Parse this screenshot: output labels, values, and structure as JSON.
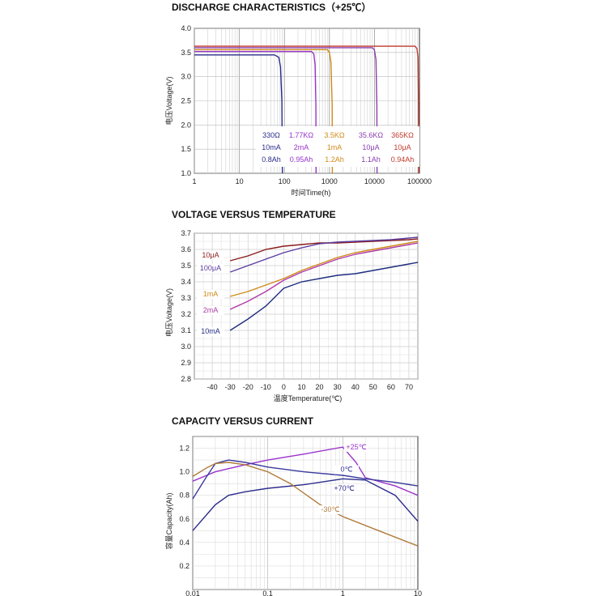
{
  "colors": {
    "red": "#c0392b",
    "maroon": "#8b1a1a",
    "navy": "#2b2b8c",
    "purple": "#8a3fb0",
    "orange": "#d08a17",
    "violet": "#9933cc",
    "brown": "#b07a3a",
    "blue": "#1f2d80"
  },
  "chart_data": [
    {
      "type": "line",
      "title": "DISCHARGE CHARACTERISTICS（+25℃）",
      "xlabel": "时间Time(h)",
      "ylabel": "电压Voltage(V)",
      "xscale": "log",
      "xlim": [
        1,
        100000
      ],
      "ylim": [
        1.0,
        4.0
      ],
      "xticks": [
        "1",
        "10",
        "100",
        "1000",
        "10000",
        "100000"
      ],
      "yticks": [
        "1.0",
        "1.5",
        "2.0",
        "2.5",
        "3.0",
        "3.5",
        "4.0"
      ],
      "series": [
        {
          "name": "330Ω",
          "current": "10mA",
          "capacity": "0.8Ah",
          "color": "#2b2b8c",
          "x": [
            1,
            60,
            75,
            82,
            88,
            90
          ],
          "y": [
            3.45,
            3.45,
            3.4,
            3.2,
            2.5,
            1.0
          ]
        },
        {
          "name": "1.77KΩ",
          "current": "2mA",
          "capacity": "0.95Ah",
          "color": "#9933cc",
          "x": [
            1,
            400,
            450,
            480,
            500,
            505
          ],
          "y": [
            3.52,
            3.52,
            3.47,
            3.25,
            2.4,
            1.0
          ]
        },
        {
          "name": "3.5KΩ",
          "current": "1mA",
          "capacity": "1.2Ah",
          "color": "#d08a17",
          "x": [
            1,
            900,
            1000,
            1080,
            1150,
            1160
          ],
          "y": [
            3.56,
            3.56,
            3.5,
            3.3,
            2.4,
            1.0
          ]
        },
        {
          "name": "35.6KΩ",
          "current": "10μA",
          "capacity": "1.1Ah",
          "color": "#8a3fb0",
          "x": [
            1,
            9000,
            10000,
            10800,
            11300,
            11400
          ],
          "y": [
            3.6,
            3.6,
            3.55,
            3.35,
            2.4,
            1.0
          ]
        },
        {
          "name": "365KΩ",
          "current": "10μA",
          "capacity": "0.94Ah",
          "color": "#c0392b",
          "x": [
            1,
            80000,
            88000,
            93000,
            95000,
            96000
          ],
          "y": [
            3.63,
            3.63,
            3.58,
            3.4,
            2.5,
            1.0
          ]
        }
      ]
    },
    {
      "type": "line",
      "title": "VOLTAGE VERSUS TEMPERATURE",
      "xlabel": "温度Temperature(℃)",
      "ylabel": "电压Voltage(V)",
      "xlim": [
        -50,
        75
      ],
      "ylim": [
        2.8,
        3.7
      ],
      "xticks": [
        "-40",
        "-30",
        "-20",
        "-10",
        "0",
        "10",
        "20",
        "30",
        "40",
        "50",
        "60",
        "70"
      ],
      "yticks": [
        "2.8",
        "2.9",
        "3.0",
        "3.1",
        "3.2",
        "3.3",
        "3.4",
        "3.5",
        "3.6",
        "3.7"
      ],
      "series": [
        {
          "name": "10μA",
          "color": "#8b1a1a",
          "x": [
            -30,
            -20,
            -10,
            0,
            10,
            20,
            30,
            40,
            50,
            60,
            70,
            75
          ],
          "y": [
            3.53,
            3.56,
            3.6,
            3.62,
            3.63,
            3.64,
            3.64,
            3.645,
            3.65,
            3.655,
            3.66,
            3.665
          ]
        },
        {
          "name": "100μA",
          "color": "#5a3da0",
          "x": [
            -30,
            -20,
            -10,
            0,
            10,
            20,
            30,
            40,
            50,
            60,
            70,
            75
          ],
          "y": [
            3.46,
            3.5,
            3.54,
            3.58,
            3.61,
            3.635,
            3.645,
            3.65,
            3.655,
            3.66,
            3.67,
            3.675
          ]
        },
        {
          "name": "1mA",
          "color": "#d08a17",
          "x": [
            -30,
            -20,
            -10,
            0,
            10,
            20,
            30,
            40,
            50,
            60,
            70,
            75
          ],
          "y": [
            3.31,
            3.34,
            3.38,
            3.42,
            3.47,
            3.51,
            3.55,
            3.58,
            3.6,
            3.62,
            3.64,
            3.65
          ]
        },
        {
          "name": "2mA",
          "color": "#b03aa8",
          "x": [
            -30,
            -20,
            -10,
            0,
            10,
            20,
            30,
            40,
            50,
            60,
            70,
            75
          ],
          "y": [
            3.23,
            3.28,
            3.34,
            3.41,
            3.46,
            3.5,
            3.54,
            3.57,
            3.59,
            3.61,
            3.63,
            3.64
          ]
        },
        {
          "name": "10mA",
          "color": "#1f2d80",
          "x": [
            -30,
            -20,
            -10,
            0,
            10,
            20,
            30,
            40,
            50,
            60,
            70,
            75
          ],
          "y": [
            3.1,
            3.17,
            3.25,
            3.36,
            3.4,
            3.42,
            3.44,
            3.45,
            3.47,
            3.49,
            3.51,
            3.52
          ]
        }
      ]
    },
    {
      "type": "line",
      "title": "CAPACITY VERSUS CURRENT",
      "xlabel": "",
      "ylabel": "容量Capacity(Ah)",
      "xscale": "log",
      "xlim": [
        0.01,
        10
      ],
      "ylim": [
        0,
        1.3
      ],
      "xticks": [
        "0.01",
        "0.1",
        "1",
        "10"
      ],
      "yticks": [
        "0",
        "0.2",
        "0.4",
        "0.6",
        "0.8",
        "1.0",
        "1.2"
      ],
      "series": [
        {
          "name": "+25℃",
          "color": "#9933cc",
          "x": [
            0.01,
            0.02,
            0.05,
            0.1,
            0.3,
            1,
            1.5,
            2,
            5,
            10
          ],
          "y": [
            0.92,
            1.0,
            1.06,
            1.1,
            1.15,
            1.21,
            1.08,
            0.95,
            0.88,
            0.8
          ]
        },
        {
          "name": "0℃",
          "color": "#3a3a9e",
          "x": [
            0.01,
            0.015,
            0.02,
            0.03,
            0.05,
            0.1,
            0.3,
            1,
            2,
            5,
            10
          ],
          "y": [
            0.77,
            0.95,
            1.07,
            1.1,
            1.08,
            1.04,
            1.0,
            0.97,
            0.94,
            0.91,
            0.88
          ]
        },
        {
          "name": "+70℃",
          "color": "#2b2b8c",
          "x": [
            0.01,
            0.02,
            0.03,
            0.05,
            0.1,
            0.3,
            1,
            2,
            5,
            10
          ],
          "y": [
            0.5,
            0.72,
            0.8,
            0.83,
            0.86,
            0.89,
            0.94,
            0.93,
            0.8,
            0.58
          ]
        },
        {
          "name": "-30℃",
          "color": "#b07a3a",
          "x": [
            0.01,
            0.015,
            0.02,
            0.03,
            0.05,
            0.1,
            0.2,
            0.5,
            1,
            3,
            10
          ],
          "y": [
            0.96,
            1.03,
            1.07,
            1.08,
            1.06,
            1.0,
            0.9,
            0.72,
            0.62,
            0.5,
            0.37
          ]
        }
      ]
    }
  ]
}
